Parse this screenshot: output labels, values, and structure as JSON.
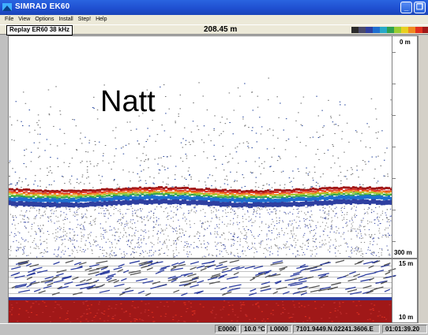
{
  "window": {
    "title": "SIMRAD EK60"
  },
  "menu": [
    "File",
    "View",
    "Options",
    "Install",
    "Step!",
    "Help"
  ],
  "infobar": {
    "mode": "Replay ER60 38 kHz",
    "range": "208.45 m"
  },
  "palette_colors": [
    "#2b2b2b",
    "#4a4a6a",
    "#2e3fa0",
    "#1e6fd0",
    "#28a8c8",
    "#2ea050",
    "#9acd32",
    "#e8d020",
    "#f08a20",
    "#e03020",
    "#a01818"
  ],
  "echogram": {
    "overlay_text": "Natt",
    "upper_depth_top": "0 m",
    "upper_depth_bottom": "300 m",
    "lower_depth_top": "15 m",
    "lower_depth_bottom": "10 m"
  },
  "status": {
    "e": "E0000",
    "temp": "10.0 °C",
    "l": "L0000",
    "position": "7101.9449.N.02241.3606.E",
    "time": "01:01:39.20"
  }
}
